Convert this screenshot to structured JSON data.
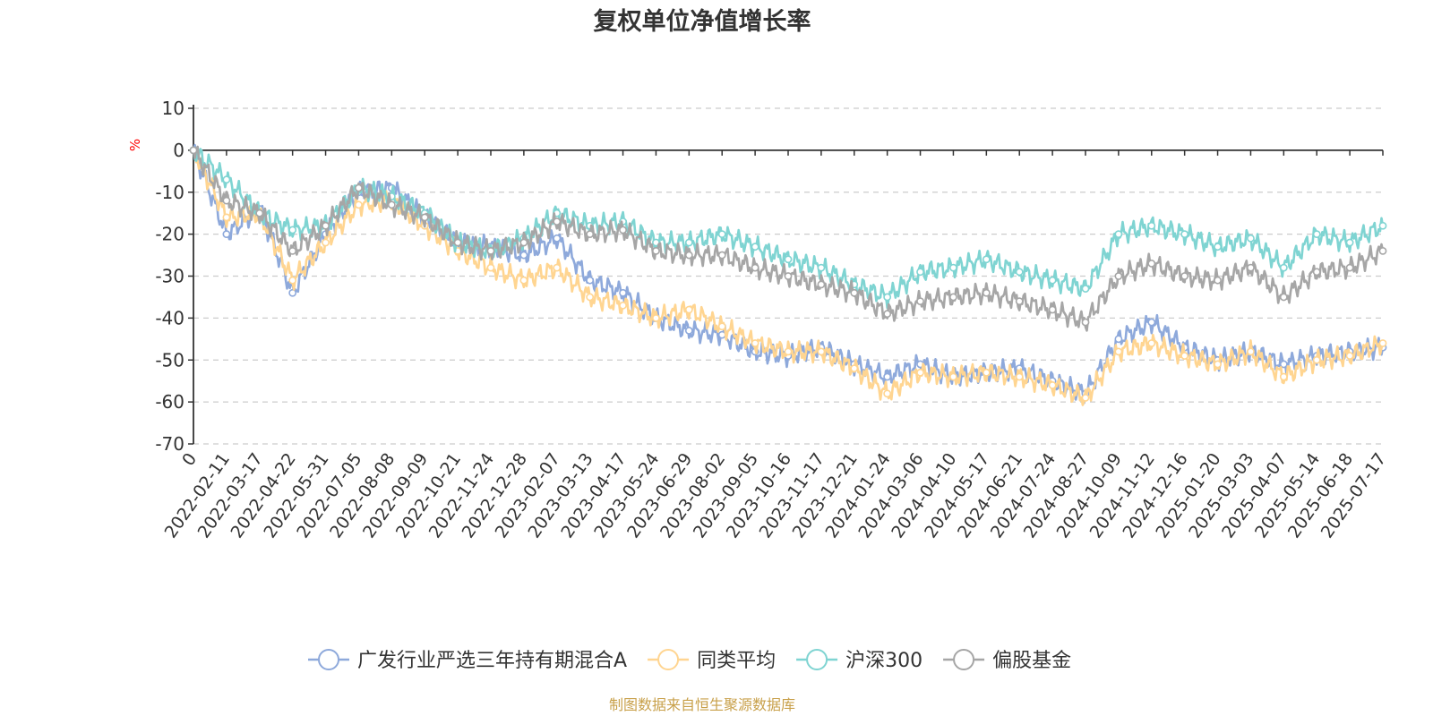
{
  "chart_data": {
    "type": "line",
    "title": "复权单位净值增长率",
    "ylabel": "%",
    "ylim": [
      -70,
      10
    ],
    "yticks": [
      10,
      0,
      -10,
      -20,
      -30,
      -40,
      -50,
      -60,
      -70
    ],
    "grid": true,
    "legend_position": "bottom",
    "source": "制图数据来自恒生聚源数据库",
    "colors": {
      "source": "#c8a04a",
      "unit": "#ff0000",
      "axis": "#333333",
      "grid": "#cccccc"
    },
    "x_ticks": [
      "0",
      "2022-02-11",
      "2022-03-17",
      "2022-04-22",
      "2022-05-31",
      "2022-07-05",
      "2022-08-08",
      "2022-09-09",
      "2022-10-21",
      "2022-11-24",
      "2022-12-28",
      "2023-02-07",
      "2023-03-13",
      "2023-04-17",
      "2023-05-24",
      "2023-06-29",
      "2023-08-02",
      "2023-09-05",
      "2023-10-16",
      "2023-11-17",
      "2023-12-21",
      "2024-01-24",
      "2024-03-06",
      "2024-04-10",
      "2024-05-17",
      "2024-06-21",
      "2024-07-24",
      "2024-08-27",
      "2024-10-09",
      "2024-11-12",
      "2024-12-16",
      "2025-01-20",
      "2025-03-03",
      "2025-04-07",
      "2025-05-14",
      "2025-06-18",
      "2025-07-17"
    ],
    "series": [
      {
        "name": "广发行业严选三年持有期混合A",
        "color": "#8ea9db",
        "values": [
          0,
          -20,
          -14,
          -34,
          -20,
          -10,
          -9,
          -16,
          -22,
          -23,
          -25,
          -21,
          -31,
          -34,
          -40,
          -43,
          -44,
          -48,
          -49,
          -47,
          -51,
          -54,
          -51,
          -54,
          -53,
          -52,
          -55,
          -58,
          -45,
          -41,
          -47,
          -50,
          -48,
          -51,
          -49,
          -48,
          -47
        ]
      },
      {
        "name": "同类平均",
        "color": "#ffd591",
        "values": [
          0,
          -16,
          -15,
          -31,
          -22,
          -13,
          -12,
          -18,
          -24,
          -28,
          -31,
          -28,
          -35,
          -37,
          -40,
          -38,
          -42,
          -46,
          -48,
          -48,
          -52,
          -58,
          -53,
          -54,
          -53,
          -54,
          -56,
          -59,
          -48,
          -46,
          -49,
          -51,
          -48,
          -54,
          -50,
          -49,
          -46
        ]
      },
      {
        "name": "沪深300",
        "color": "#7fd4d2",
        "values": [
          0,
          -7,
          -15,
          -19,
          -18,
          -9,
          -11,
          -15,
          -22,
          -24,
          -21,
          -15,
          -18,
          -17,
          -22,
          -22,
          -20,
          -23,
          -26,
          -28,
          -32,
          -35,
          -29,
          -28,
          -26,
          -29,
          -31,
          -33,
          -20,
          -18,
          -20,
          -23,
          -21,
          -28,
          -20,
          -22,
          -18
        ]
      },
      {
        "name": "偏股基金",
        "color": "#a6a6a6",
        "values": [
          0,
          -12,
          -15,
          -24,
          -18,
          -9,
          -13,
          -16,
          -22,
          -24,
          -22,
          -17,
          -20,
          -19,
          -24,
          -25,
          -25,
          -28,
          -30,
          -32,
          -34,
          -39,
          -36,
          -35,
          -34,
          -36,
          -38,
          -41,
          -30,
          -27,
          -30,
          -31,
          -28,
          -35,
          -29,
          -28,
          -24
        ]
      }
    ]
  }
}
